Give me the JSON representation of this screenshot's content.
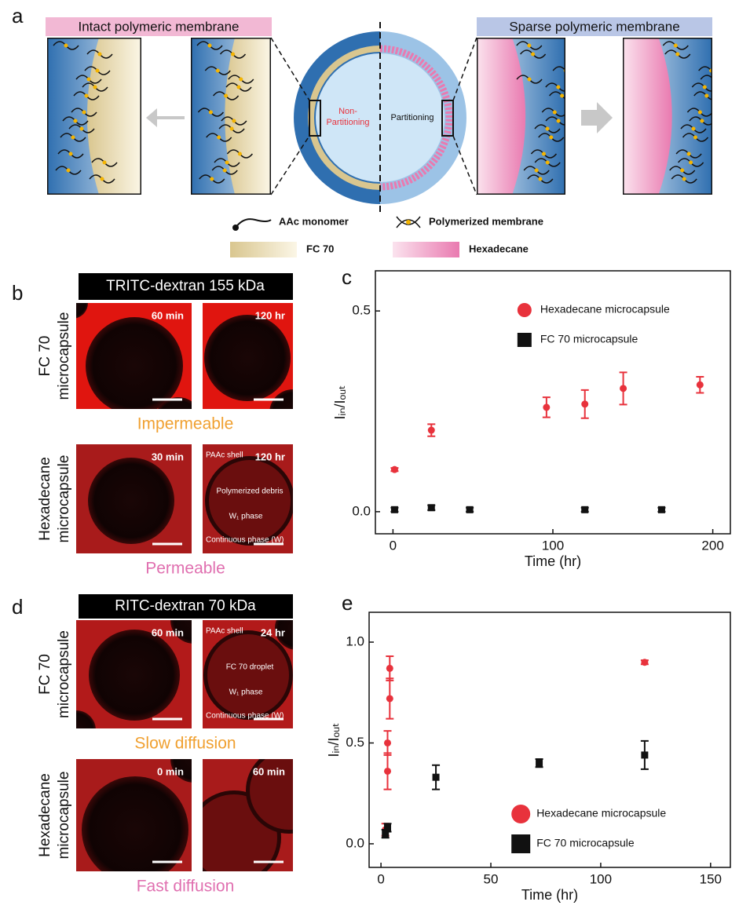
{
  "figure": {
    "panel_labels": [
      "a",
      "b",
      "c",
      "d",
      "e"
    ],
    "a": {
      "left_title": "Intact polymeric membrane",
      "right_title": "Sparse polymeric membrane",
      "center_left": [
        "Non-",
        "Partitioning"
      ],
      "center_right": "Partitioning",
      "legend": [
        "AAc monomer",
        "Polymerized membrane",
        "FC 70",
        "Hexadecane"
      ]
    },
    "b": {
      "header": "TRITC-dextran 155 kDa",
      "rows": [
        {
          "label": [
            "FC 70",
            "microcapsule"
          ],
          "times": [
            "60 min",
            "120 hr"
          ],
          "caption": "Impermeable"
        },
        {
          "label": [
            "Hexadecane",
            "microcapsule"
          ],
          "times": [
            "30 min",
            "120 hr"
          ],
          "caption": "Permeable",
          "notes": [
            "PAAc shell",
            "Polymerized debris",
            "W₁ phase",
            "Continuous phase (W)"
          ]
        }
      ]
    },
    "d": {
      "header": "RITC-dextran 70 kDa",
      "rows": [
        {
          "label": [
            "FC 70",
            "microcapsule"
          ],
          "times": [
            "60 min",
            "24 hr"
          ],
          "caption": "Slow diffusion",
          "notes": [
            "PAAc shell",
            "FC 70 droplet",
            "W₁ phase",
            "Continuous phase (W)"
          ]
        },
        {
          "label": [
            "Hexadecane",
            "microcapsule"
          ],
          "times": [
            "0 min",
            "60 min"
          ],
          "caption": "Fast diffusion"
        }
      ]
    }
  },
  "chart_data": [
    {
      "type": "scatter",
      "x_label": "Time (hr)",
      "y_label": "Iᵢₙ/Iₒᵤₜ",
      "legend": "upper right",
      "xlim": [
        -11,
        211
      ],
      "ylim": [
        -0.055,
        0.6
      ],
      "xticks": [
        0,
        100,
        200
      ],
      "yticks": [
        {
          "value": 0,
          "label": "0.0"
        },
        0.5
      ],
      "series": [
        {
          "name": "Hexadecane microcapsule",
          "color": "#e8323c",
          "marker": "circle",
          "x": [
            1,
            24,
            96,
            120,
            144,
            192
          ],
          "values": [
            0.105,
            0.203,
            0.26,
            0.268,
            0.307,
            0.316
          ],
          "errors": [
            0.004,
            0.015,
            0.025,
            0.035,
            0.04,
            0.02
          ]
        },
        {
          "name": "FC 70 microcapsule",
          "color": "#111111",
          "marker": "square",
          "x": [
            1,
            24,
            48,
            120,
            168
          ],
          "values": [
            0.005,
            0.01,
            0.005,
            0.005,
            0.005
          ],
          "errors": [
            0.005,
            0.006,
            0.005,
            0.005,
            0.005
          ]
        }
      ]
    },
    {
      "type": "scatter",
      "x_label": "Time (hr)",
      "y_label": "Iᵢₙ/Iₒᵤₜ",
      "legend": "lower right",
      "xlim": [
        -5.4,
        159
      ],
      "ylim": [
        -0.117,
        1.148
      ],
      "xticks": [
        0,
        50,
        100,
        150
      ],
      "yticks": [
        {
          "value": 0,
          "label": "0.0"
        },
        0.5,
        {
          "value": 1,
          "label": "1.0"
        }
      ],
      "series": [
        {
          "name": "Hexadecane microcapsule",
          "color": "#e8323c",
          "marker": "circle",
          "x": [
            2,
            3,
            3,
            4,
            4,
            120
          ],
          "values": [
            0.07,
            0.36,
            0.5,
            0.72,
            0.87,
            0.9
          ],
          "errors": [
            0.03,
            0.09,
            0.06,
            0.1,
            0.06,
            0.01
          ]
        },
        {
          "name": "FC 70 microcapsule",
          "color": "#111111",
          "marker": "square",
          "x": [
            2,
            3,
            25,
            72,
            120
          ],
          "values": [
            0.05,
            0.08,
            0.33,
            0.4,
            0.44
          ],
          "errors": [
            0.02,
            0.02,
            0.06,
            0.02,
            0.07
          ]
        }
      ]
    }
  ]
}
